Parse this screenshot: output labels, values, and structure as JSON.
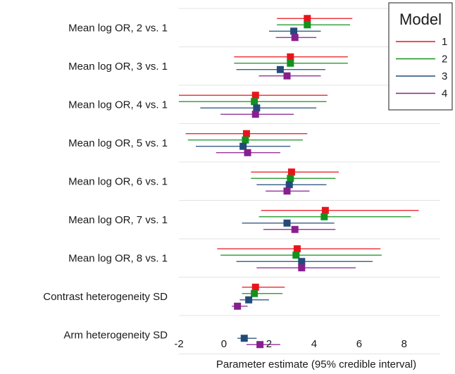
{
  "chart_data": {
    "type": "forest",
    "xlabel": "Parameter estimate (95% credible interval)",
    "xlim": [
      -2,
      9.6
    ],
    "xticks": [
      -2,
      0,
      2,
      4,
      6,
      8
    ],
    "grid": "horizontal",
    "legend": {
      "title": "Model",
      "position": "top-right",
      "entries": [
        "1",
        "2",
        "3",
        "4"
      ]
    },
    "colors": {
      "1": "#e8141c",
      "2": "#13921e",
      "3": "#224b7a",
      "4": "#881f8f"
    },
    "parameters": [
      "Mean log OR, 2 vs. 1",
      "Mean log OR, 3 vs. 1",
      "Mean log OR, 4 vs. 1",
      "Mean log OR, 5 vs. 1",
      "Mean log OR, 6 vs. 1",
      "Mean log OR, 7 vs. 1",
      "Mean log OR, 8 vs. 1",
      "Contrast heterogeneity SD",
      "Arm heterogeneity SD"
    ],
    "series": [
      {
        "name": "1",
        "estimates": [
          [
            3.7,
            2.35,
            5.7
          ],
          [
            2.95,
            0.45,
            5.5
          ],
          [
            1.4,
            -2.05,
            4.6
          ],
          [
            1.0,
            -1.7,
            3.7
          ],
          [
            3.0,
            1.2,
            5.1
          ],
          [
            4.5,
            1.65,
            8.65
          ],
          [
            3.25,
            -0.3,
            6.95
          ],
          [
            1.4,
            0.8,
            2.7
          ],
          null
        ]
      },
      {
        "name": "2",
        "estimates": [
          [
            3.7,
            2.35,
            5.6
          ],
          [
            2.95,
            0.45,
            5.5
          ],
          [
            1.35,
            -2.05,
            4.55
          ],
          [
            0.95,
            -1.6,
            3.5
          ],
          [
            2.95,
            1.2,
            4.95
          ],
          [
            4.45,
            1.55,
            8.3
          ],
          [
            3.2,
            -0.15,
            7.0
          ],
          [
            1.35,
            0.8,
            2.6
          ],
          null
        ]
      },
      {
        "name": "3",
        "estimates": [
          [
            3.1,
            2.0,
            4.3
          ],
          [
            2.5,
            0.55,
            4.5
          ],
          [
            1.45,
            -1.05,
            4.1
          ],
          [
            0.85,
            -1.25,
            2.95
          ],
          [
            2.9,
            1.45,
            4.55
          ],
          [
            2.8,
            0.8,
            4.9
          ],
          [
            3.45,
            0.55,
            6.6
          ],
          [
            1.1,
            0.7,
            2.0
          ],
          [
            0.9,
            0.6,
            1.45
          ]
        ]
      },
      {
        "name": "4",
        "estimates": [
          [
            3.15,
            2.3,
            4.1
          ],
          [
            2.8,
            1.55,
            4.3
          ],
          [
            1.4,
            -0.15,
            3.1
          ],
          [
            1.05,
            -0.35,
            2.5
          ],
          [
            2.8,
            1.85,
            3.8
          ],
          [
            3.15,
            1.75,
            4.95
          ],
          [
            3.45,
            1.45,
            5.85
          ],
          [
            0.6,
            0.35,
            1.05
          ],
          [
            1.6,
            1.0,
            2.5
          ]
        ]
      }
    ]
  }
}
